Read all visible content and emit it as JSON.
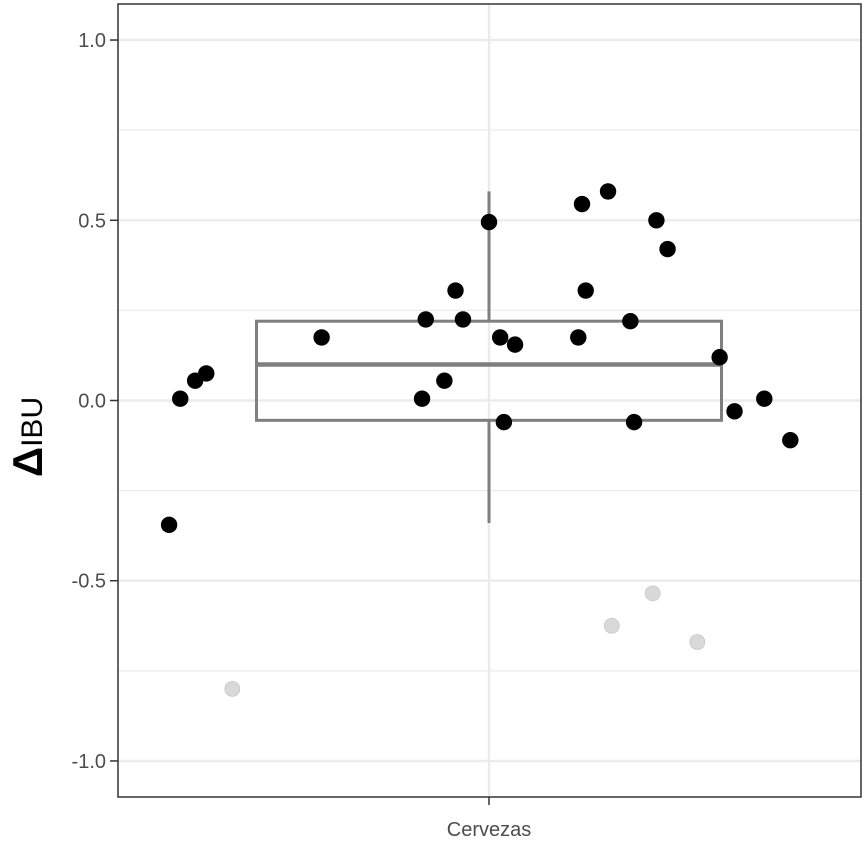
{
  "chart_data": {
    "type": "scatter",
    "title": "",
    "xlabel": "",
    "ylabel_symbol": "Δ",
    "ylabel_text": "IBU",
    "categories": [
      "Cervezas"
    ],
    "ylim": [
      -1.1,
      1.1
    ],
    "yticks": [
      -1.0,
      -0.5,
      0.0,
      0.5,
      1.0
    ],
    "ytick_labels": [
      "-1.0",
      "-0.5",
      "0.0",
      "0.5",
      "1.0"
    ],
    "grid": true,
    "box": {
      "q1": -0.055,
      "median": 0.1,
      "q3": 0.22,
      "whisker_low": -0.34,
      "whisker_high": 0.58
    },
    "points": [
      {
        "x": -0.86,
        "y": -0.345
      },
      {
        "x": -0.83,
        "y": 0.005
      },
      {
        "x": -0.79,
        "y": 0.055
      },
      {
        "x": -0.76,
        "y": 0.075
      },
      {
        "x": -0.45,
        "y": 0.175
      },
      {
        "x": -0.18,
        "y": 0.005
      },
      {
        "x": -0.12,
        "y": 0.055
      },
      {
        "x": -0.17,
        "y": 0.225
      },
      {
        "x": -0.09,
        "y": 0.305
      },
      {
        "x": -0.07,
        "y": 0.225
      },
      {
        "x": 0.0,
        "y": 0.495
      },
      {
        "x": 0.03,
        "y": 0.175
      },
      {
        "x": 0.07,
        "y": 0.155
      },
      {
        "x": 0.04,
        "y": -0.06
      },
      {
        "x": 0.25,
        "y": 0.545
      },
      {
        "x": 0.32,
        "y": 0.58
      },
      {
        "x": 0.26,
        "y": 0.305
      },
      {
        "x": 0.24,
        "y": 0.175
      },
      {
        "x": 0.38,
        "y": 0.22
      },
      {
        "x": 0.45,
        "y": 0.5
      },
      {
        "x": 0.48,
        "y": 0.42
      },
      {
        "x": 0.39,
        "y": -0.06
      },
      {
        "x": 0.62,
        "y": 0.12
      },
      {
        "x": 0.66,
        "y": -0.03
      },
      {
        "x": 0.74,
        "y": 0.005
      },
      {
        "x": 0.81,
        "y": -0.11
      }
    ],
    "outliers": [
      {
        "x": -0.69,
        "y": -0.8
      },
      {
        "x": 0.33,
        "y": -0.625
      },
      {
        "x": 0.44,
        "y": -0.535
      },
      {
        "x": 0.56,
        "y": -0.67
      }
    ],
    "colors": {
      "point": "#000000",
      "outlier": "#d9d9d9",
      "box": "#7f7f7f",
      "grid": "#ebebeb",
      "panel_border": "#333333"
    }
  }
}
